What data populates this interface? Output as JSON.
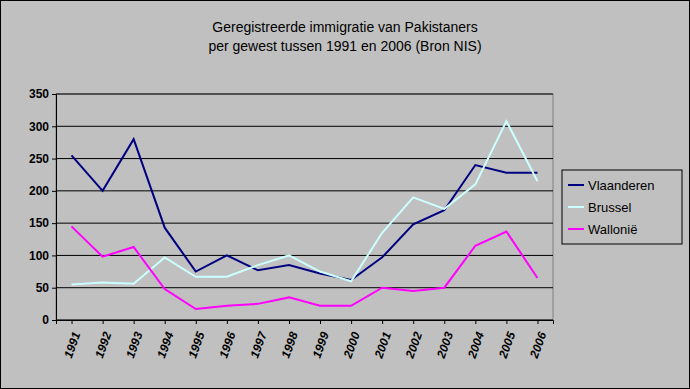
{
  "chart_data": {
    "type": "line",
    "title": [
      "Geregistreerde immigratie van Pakistaners",
      "per gewest tussen 1991 en 2006 (Bron NIS)"
    ],
    "categories": [
      "1991",
      "1992",
      "1993",
      "1994",
      "1995",
      "1996",
      "1997",
      "1998",
      "1999",
      "2000",
      "2001",
      "2002",
      "2003",
      "2004",
      "2005",
      "2006"
    ],
    "series": [
      {
        "name": "Vlaanderen",
        "color": "#000080",
        "values": [
          255,
          200,
          280,
          143,
          75,
          100,
          77,
          85,
          72,
          62,
          97,
          148,
          170,
          240,
          228,
          228
        ]
      },
      {
        "name": "Brussel",
        "color": "#ccffff",
        "values": [
          55,
          58,
          56,
          97,
          67,
          67,
          85,
          100,
          75,
          60,
          135,
          190,
          172,
          210,
          308,
          215
        ]
      },
      {
        "name": "Wallonië",
        "color": "#ff00ff",
        "values": [
          145,
          98,
          113,
          48,
          17,
          22,
          25,
          35,
          22,
          22,
          50,
          45,
          50,
          115,
          137,
          65
        ]
      }
    ],
    "ylim": [
      0,
      350
    ],
    "yticks": [
      0,
      50,
      100,
      150,
      200,
      250,
      300,
      350
    ],
    "grid": true,
    "legend": "right"
  }
}
